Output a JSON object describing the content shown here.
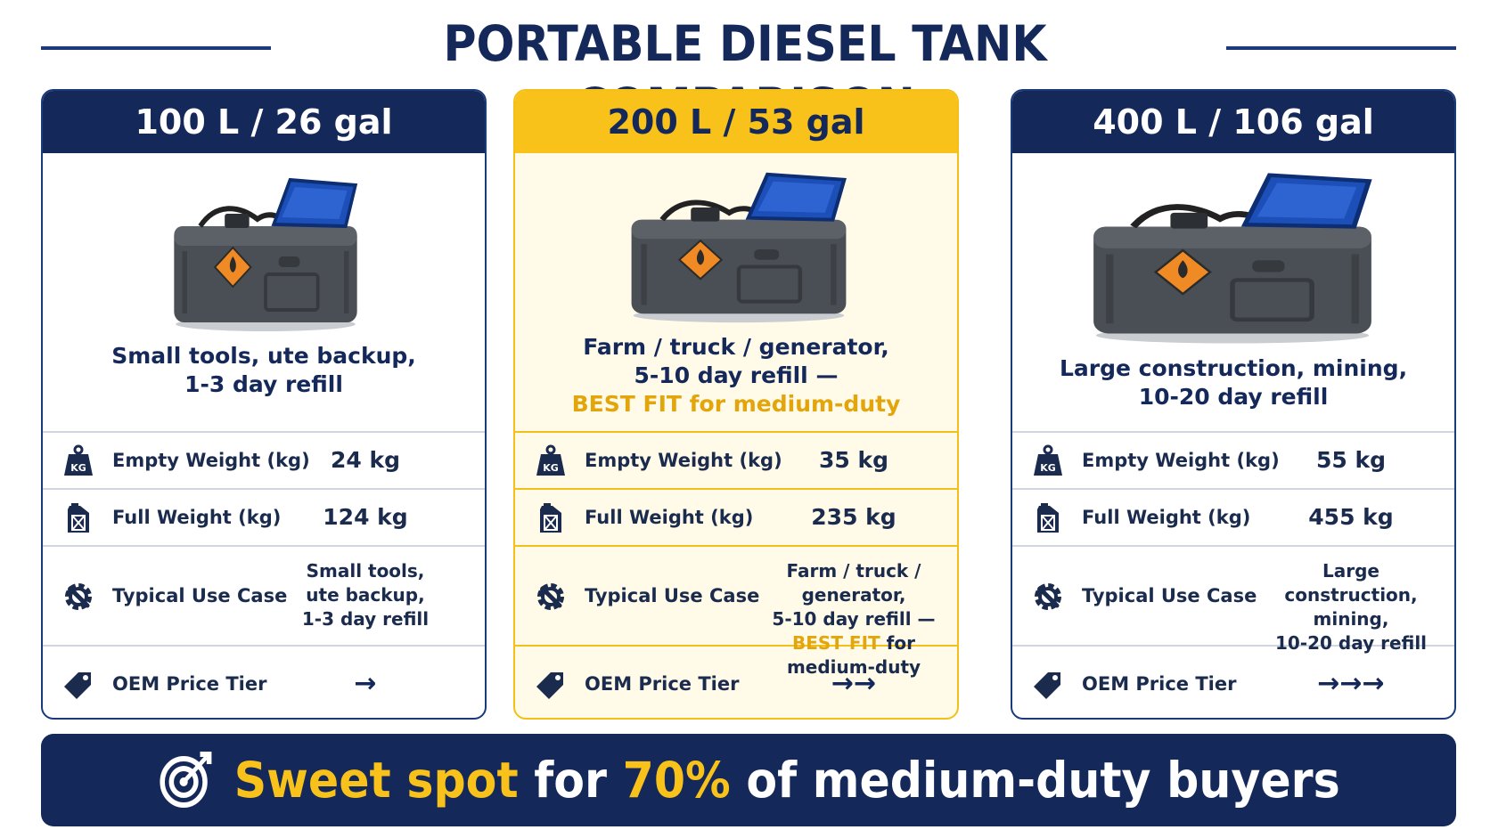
{
  "page": {
    "title": "PORTABLE DIESEL TANK COMPARISON"
  },
  "colors": {
    "navy": "#14285a",
    "accent_yellow": "#f8c21b",
    "tank_gray": "#4a4f55",
    "lid_blue": "#1d4fb8",
    "hazard_orange": "#f08a24"
  },
  "row_labels": {
    "empty_weight": "Empty Weight (kg)",
    "full_weight": "Full Weight (kg)",
    "use_case": "Typical Use Case",
    "price_tier": "OEM Price Tier"
  },
  "icons": {
    "empty_weight": "kg-weight-icon",
    "full_weight": "jerrycan-icon",
    "use_case": "gear-wrench-icon",
    "price_tier": "price-tag-icon",
    "banner": "target-icon",
    "kg_text": "KG"
  },
  "cards": [
    {
      "header": "100 L / 26 gal",
      "hero_line1": "Small tools, ute backup,",
      "hero_line2": "1-3 day refill",
      "empty_weight": "24 kg",
      "full_weight": "124 kg",
      "use_case_lines": [
        "Small tools,",
        "ute backup,",
        "1-3 day refill"
      ],
      "price_tier": "→"
    },
    {
      "header": "200 L / 53 gal",
      "hero_line1": "Farm / truck / generator,",
      "hero_line2": "5-10 day refill —",
      "hero_line3": "BEST FIT for medium-duty",
      "empty_weight": "35 kg",
      "full_weight": "235 kg",
      "use_case_lines": [
        "Farm / truck / generator,",
        "5-10 day refill —"
      ],
      "use_case_best": "BEST FIT",
      "use_case_rest": " for medium-duty",
      "price_tier": "→→"
    },
    {
      "header": "400 L / 106 gal",
      "hero_line1": "Large construction, mining,",
      "hero_line2": "10-20 day refill",
      "empty_weight": "55 kg",
      "full_weight": "455 kg",
      "use_case_lines": [
        "Large construction,",
        "mining,",
        "10-20 day refill"
      ],
      "price_tier": "→→→"
    }
  ],
  "banner": {
    "part1": "Sweet spot",
    "part2": " for ",
    "part3": "70%",
    "part4": " of medium-duty buyers"
  }
}
